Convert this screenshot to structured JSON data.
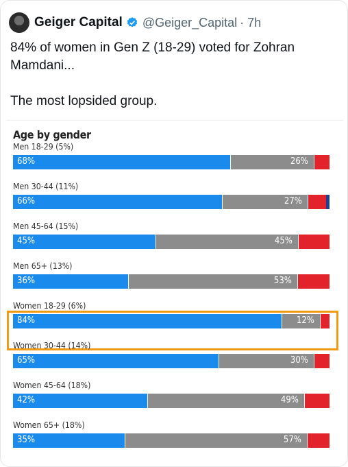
{
  "post": {
    "author_name": "Geiger Capital",
    "handle": "@Geiger_Capital",
    "time": "· 7h",
    "text_line1": "84% of women in Gen Z (18-29) voted for Zohran Mamdani...",
    "text_line2": "The most lopsided group."
  },
  "icons": {
    "avatar": "avatar-image",
    "verified": "verified-badge-icon"
  },
  "colors": {
    "dem": "#1a8bec",
    "other": "#8c8c8c",
    "rep": "#e3232c",
    "highlight": "#f29a12"
  },
  "chart_data": {
    "type": "bar",
    "stacked": true,
    "orientation": "horizontal",
    "title": "Age by gender",
    "categories": [
      "Men 18-29 (5%)",
      "Men 30-44 (11%)",
      "Men 45-64 (15%)",
      "Men 65+ (13%)",
      "Women 18-29 (6%)",
      "Women 30-44 (14%)",
      "Women 45-64 (18%)",
      "Women 65+ (18%)"
    ],
    "series": [
      {
        "values": [
          68,
          66,
          45,
          36,
          84,
          65,
          42,
          35
        ],
        "labels": [
          "68%",
          "66%",
          "45%",
          "36%",
          "84%",
          "65%",
          "42%",
          "35%"
        ]
      },
      {
        "values": [
          26,
          27,
          45,
          53,
          12,
          30,
          49,
          57
        ],
        "labels": [
          "26%",
          "27%",
          "45%",
          "53%",
          "12%",
          "30%",
          "49%",
          "57%"
        ]
      },
      {
        "values": [
          5,
          6,
          10,
          10,
          3,
          5,
          8,
          7
        ]
      },
      {
        "values": [
          0,
          1,
          0,
          0,
          0,
          0,
          0,
          0
        ]
      }
    ],
    "highlighted_category": "Women 18-29 (6%)"
  }
}
